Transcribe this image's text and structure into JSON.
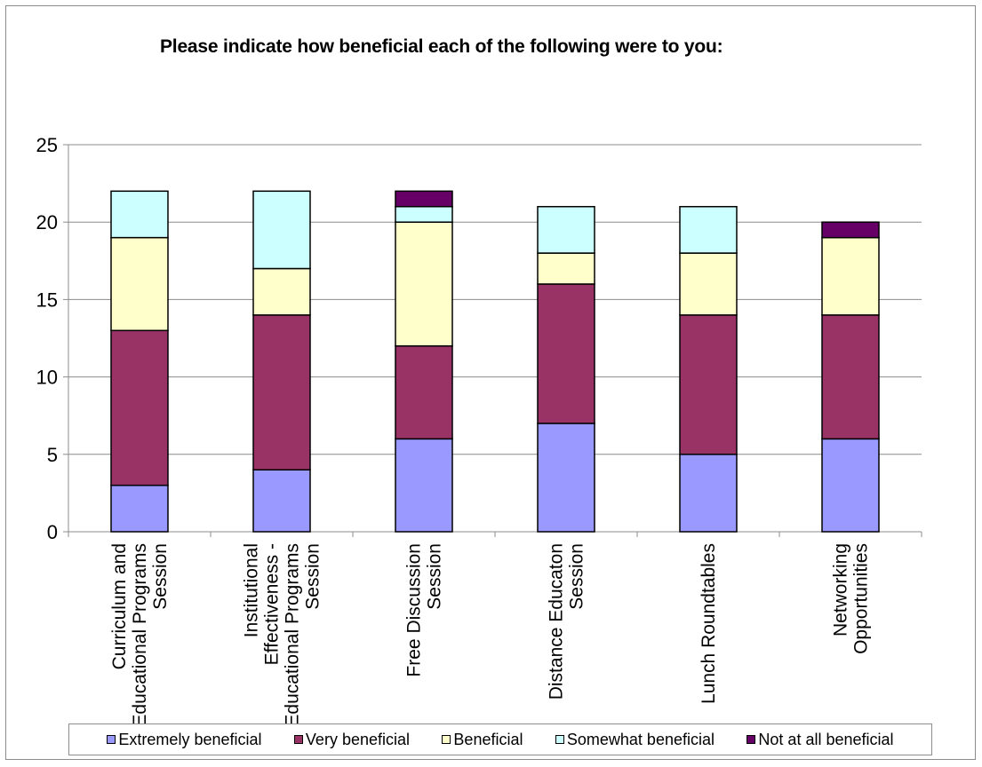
{
  "chart_data": {
    "type": "bar",
    "stacked": true,
    "title": "Please indicate how beneficial each of the following were to you:",
    "xlabel": "",
    "ylabel": "",
    "ylim": [
      0,
      25
    ],
    "yticks": [
      0,
      5,
      10,
      15,
      20,
      25
    ],
    "grid": true,
    "legend_position": "bottom",
    "categories": [
      [
        "Curriculum and",
        "Educational Programs",
        "Session"
      ],
      [
        "Institutional",
        "Effectiveness -",
        "Educational Programs",
        "Session"
      ],
      [
        "Free Discussion",
        "Session"
      ],
      [
        "Distance Educaton",
        "Session"
      ],
      [
        "Lunch Roundtables"
      ],
      [
        "Networking",
        "Opportunities"
      ]
    ],
    "series": [
      {
        "name": "Extremely beneficial",
        "color": "#9999ff",
        "values": [
          3,
          4,
          6,
          7,
          5,
          6
        ]
      },
      {
        "name": "Very beneficial",
        "color": "#993366",
        "values": [
          10,
          10,
          6,
          9,
          9,
          8
        ]
      },
      {
        "name": "Beneficial",
        "color": "#ffffcc",
        "values": [
          6,
          3,
          8,
          2,
          4,
          5
        ]
      },
      {
        "name": "Somewhat beneficial",
        "color": "#ccffff",
        "values": [
          3,
          5,
          1,
          3,
          3,
          0
        ]
      },
      {
        "name": "Not at all beneficial",
        "color": "#660066",
        "values": [
          0,
          0,
          1,
          0,
          0,
          1
        ]
      }
    ]
  }
}
